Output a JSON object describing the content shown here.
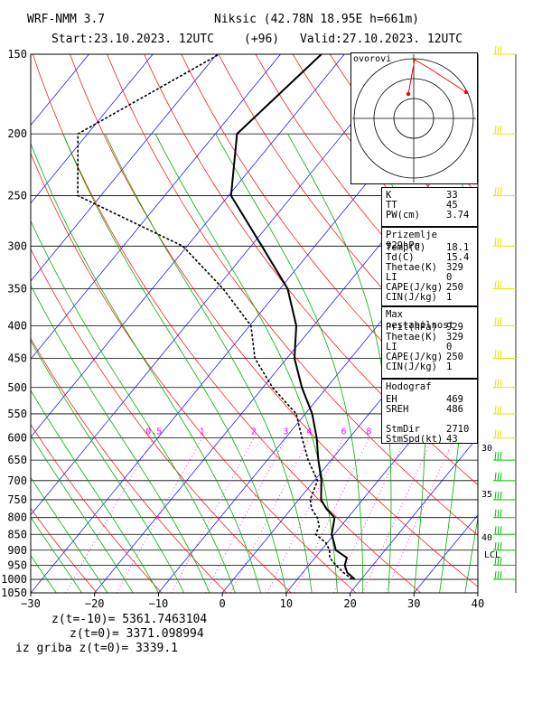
{
  "header": {
    "model": "WRF-NMM 3.7",
    "station": "Niksic (42.78N 18.95E  h=661m)",
    "start": "Start:23.10.2023.   12UTC",
    "lead": "(+96)",
    "valid": "Valid:27.10.2023.   12UTC"
  },
  "footer": {
    "z_m10": "z(t=-10)= 5361.7463104",
    "z_0": "z(t=0)=  3371.098994",
    "z_grib": "iz griba z(t=0)= 3339.1"
  },
  "hodograph": {
    "label": "ovorovi",
    "rings": [
      "10",
      "20",
      "30",
      "40"
    ]
  },
  "indices": {
    "rows": [
      {
        "k": "K",
        "v": "33"
      },
      {
        "k": "TT",
        "v": "45"
      },
      {
        "k": "PW(cm)",
        "v": "3.74"
      }
    ]
  },
  "surface": {
    "title": "Prizemlje 929hPa",
    "rows": [
      {
        "k": "Temp(C)",
        "v": "18.1"
      },
      {
        "k": "Td(C)",
        "v": "15.4"
      },
      {
        "k": "Thetae(K)",
        "v": "329"
      },
      {
        "k": "LI",
        "v": "0"
      },
      {
        "k": "CAPE(J/kg)",
        "v": "250"
      },
      {
        "k": "CIN(J/kg)",
        "v": "1"
      }
    ]
  },
  "maxinst": {
    "title": "Max nestabilnost",
    "rows": [
      {
        "k": "Prit(hPa)",
        "v": "929"
      },
      {
        "k": "Thetae(K)",
        "v": "329"
      },
      {
        "k": "LI",
        "v": "0"
      },
      {
        "k": "CAPE(J/kg)",
        "v": "250"
      },
      {
        "k": "CIN(J/kg)",
        "v": "1"
      }
    ]
  },
  "hodograf": {
    "title": "Hodograf",
    "rows": [
      {
        "k": "EH",
        "v": "469"
      },
      {
        "k": "SREH",
        "v": "486"
      },
      {
        "k": "",
        "v": ""
      },
      {
        "k": "StmDir",
        "v": "2710"
      },
      {
        "k": "StmSpd(kt)",
        "v": "43"
      }
    ]
  },
  "side_labels": [
    "30",
    "35",
    "40"
  ],
  "lcl_label": "LCL",
  "colors": {
    "isobar": "#000000",
    "isotherm": "#0000ff",
    "dry_adiabat": "#ff0000",
    "moist_adiabat": "#00b000",
    "mixing_ratio": "#ff00ff",
    "wind_barb": "#e6e600",
    "hodo_line": "#ff0000"
  },
  "chart_data": {
    "type": "skew-t",
    "xlabel": "",
    "ylabel": "",
    "xlim": [
      -30,
      40
    ],
    "ylim": [
      1050,
      150
    ],
    "pressure_ticks": [
      150,
      200,
      250,
      300,
      350,
      400,
      450,
      500,
      550,
      600,
      650,
      700,
      750,
      800,
      850,
      900,
      950,
      1000,
      1050
    ],
    "temp_ticks": [
      -30,
      -20,
      -10,
      0,
      10,
      20,
      30,
      40
    ],
    "mixing_ratio_labels": [
      "0.5",
      "1",
      "2",
      "3",
      "4",
      "6",
      "8"
    ],
    "series": [
      {
        "kind": "temperature",
        "p": [
          1000,
          975,
          950,
          925,
          900,
          875,
          850,
          825,
          800,
          775,
          750,
          700,
          650,
          600,
          550,
          500,
          450,
          400,
          350,
          300,
          250,
          200,
          150
        ],
        "t": [
          19.0,
          16.9,
          15.6,
          15.0,
          12.3,
          11.0,
          9.6,
          8.8,
          7.9,
          5.5,
          3.5,
          1.1,
          -2.0,
          -5.1,
          -8.9,
          -13.9,
          -18.8,
          -22.7,
          -28.8,
          -38.3,
          -49.6,
          -56.6,
          -53.6
        ]
      },
      {
        "kind": "dewpoint",
        "p": [
          1000,
          975,
          950,
          925,
          900,
          875,
          850,
          825,
          800,
          775,
          750,
          700,
          650,
          600,
          550,
          500,
          450,
          400,
          350,
          300,
          250,
          200,
          150
        ],
        "t": [
          18.6,
          16.3,
          14.2,
          12.3,
          11.3,
          9.7,
          7.1,
          6.6,
          5.2,
          3.2,
          1.8,
          0.5,
          -3.6,
          -7.4,
          -11.4,
          -18.5,
          -25.0,
          -29.8,
          -38.9,
          -50.7,
          -73.6,
          -81.5,
          -69.6
        ]
      }
    ]
  }
}
